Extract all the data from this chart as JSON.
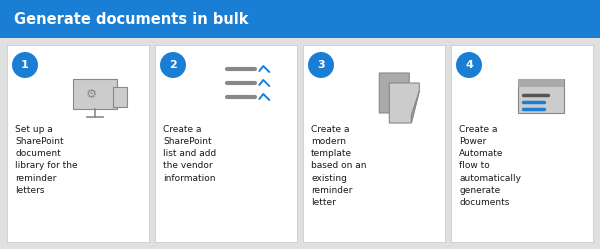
{
  "title": "Generate documents in bulk",
  "title_bg_color": "#1a7fd4",
  "title_text_color": "#ffffff",
  "bg_color": "#e0e0e0",
  "card_bg_color": "#ffffff",
  "card_border_color": "#cccccc",
  "circle_color": "#1a7fd4",
  "circle_text_color": "#ffffff",
  "body_text_color": "#1a1a1a",
  "steps": [
    {
      "number": "1",
      "text": "Set up a\nSharePoint\ndocument\nlibrary for the\nreminder\nletters"
    },
    {
      "number": "2",
      "text": "Create a\nSharePoint\nlist and add\nthe vendor\ninformation"
    },
    {
      "number": "3",
      "text": "Create a\nmodern\ntemplate\nbased on an\nexisting\nreminder\nletter"
    },
    {
      "number": "4",
      "text": "Create a\nPower\nAutomate\nflow to\nautomatically\ngenerate\ndocuments"
    }
  ],
  "fig_width": 6.0,
  "fig_height": 2.49,
  "dpi": 100,
  "icon_color_dark": "#888888",
  "icon_color_mid": "#aaaaaa",
  "icon_color_light": "#cccccc",
  "icon_color_blue": "#1a7fd4"
}
